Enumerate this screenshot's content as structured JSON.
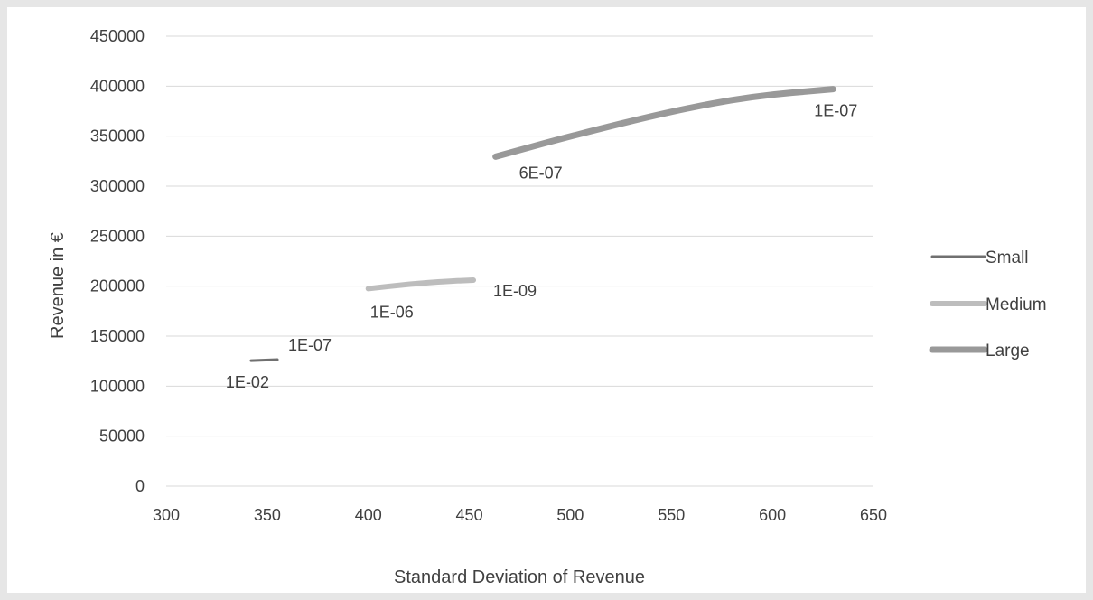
{
  "chart_data": {
    "type": "line",
    "title": "",
    "xlabel": "Standard Deviation of Revenue",
    "ylabel": "Revenue in €",
    "xlim": [
      300,
      650
    ],
    "ylim": [
      0,
      450000
    ],
    "x_ticks": [
      300,
      350,
      400,
      450,
      500,
      550,
      600,
      650
    ],
    "y_ticks": [
      0,
      50000,
      100000,
      150000,
      200000,
      250000,
      300000,
      350000,
      400000,
      450000
    ],
    "grid": "horizontal",
    "legend_position": "right",
    "series": [
      {
        "name": "Small",
        "color": "#707070",
        "points": [
          [
            342,
            125500
          ],
          [
            355,
            126500
          ]
        ],
        "labels": [
          {
            "text": "1E-02",
            "point": 0,
            "placement": "below-left"
          },
          {
            "text": "1E-07",
            "point": 1,
            "placement": "above-right"
          }
        ]
      },
      {
        "name": "Medium",
        "color": "#bdbdbd",
        "points": [
          [
            400,
            197500
          ],
          [
            420,
            202000
          ],
          [
            440,
            205000
          ],
          [
            452,
            206000
          ]
        ],
        "labels": [
          {
            "text": "1E-06",
            "point": 0,
            "placement": "below"
          },
          {
            "text": "1E-09",
            "point": 3,
            "placement": "right"
          }
        ]
      },
      {
        "name": "Large",
        "color": "#999999",
        "points": [
          [
            463,
            329500
          ],
          [
            500,
            350000
          ],
          [
            550,
            375000
          ],
          [
            590,
            390000
          ],
          [
            630,
            397000
          ]
        ],
        "labels": [
          {
            "text": "6E-07",
            "point": 0,
            "placement": "below-right"
          },
          {
            "text": "1E-07",
            "point": 4,
            "placement": "below"
          }
        ]
      }
    ]
  }
}
